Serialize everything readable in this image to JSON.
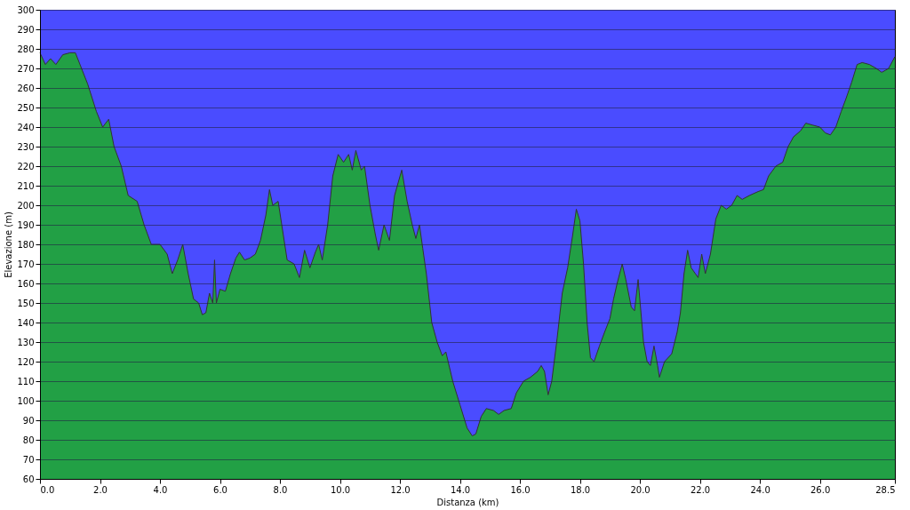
{
  "chart_data": {
    "type": "area",
    "xlabel": "Distanza  (km)",
    "ylabel": "Elevazione (m)",
    "xlim": [
      0,
      28.5
    ],
    "ylim": [
      60,
      300
    ],
    "xticks": [
      {
        "value": 0,
        "label": "0.0"
      },
      {
        "value": 2,
        "label": "2.0"
      },
      {
        "value": 4,
        "label": "4.0"
      },
      {
        "value": 6,
        "label": "6.0"
      },
      {
        "value": 8,
        "label": "8.0"
      },
      {
        "value": 10,
        "label": "10.0"
      },
      {
        "value": 12,
        "label": "12.0"
      },
      {
        "value": 14,
        "label": "14.0"
      },
      {
        "value": 16,
        "label": "16.0"
      },
      {
        "value": 18,
        "label": "18.0"
      },
      {
        "value": 20,
        "label": "20.0"
      },
      {
        "value": 22,
        "label": "22.0"
      },
      {
        "value": 24,
        "label": "24.0"
      },
      {
        "value": 26,
        "label": "26.0"
      },
      {
        "value": 28.5,
        "label": "28.5"
      }
    ],
    "yticks": [
      60,
      70,
      80,
      90,
      100,
      110,
      120,
      130,
      140,
      150,
      160,
      170,
      180,
      190,
      200,
      210,
      220,
      230,
      240,
      250,
      260,
      270,
      280,
      290,
      300
    ],
    "grid": "y",
    "bands": [
      {
        "axis": "y",
        "from": 60,
        "to": 300,
        "color": "#4a4cff"
      }
    ],
    "series": [
      {
        "color": "#22a045",
        "x": [
          0,
          0.18,
          0.35,
          0.53,
          0.76,
          1.0,
          1.18,
          1.59,
          1.88,
          2.09,
          2.29,
          2.47,
          2.71,
          2.94,
          3.24,
          3.47,
          3.71,
          4.0,
          4.24,
          4.41,
          4.59,
          4.76,
          4.94,
          5.12,
          5.29,
          5.41,
          5.53,
          5.65,
          5.76,
          5.82,
          5.88,
          6.0,
          6.18,
          6.35,
          6.53,
          6.65,
          6.82,
          7.0,
          7.18,
          7.35,
          7.53,
          7.65,
          7.76,
          7.94,
          8.06,
          8.24,
          8.47,
          8.65,
          8.82,
          9.0,
          9.18,
          9.29,
          9.41,
          9.59,
          9.76,
          9.94,
          10.12,
          10.29,
          10.41,
          10.53,
          10.71,
          10.82,
          11.0,
          11.18,
          11.29,
          11.47,
          11.65,
          11.82,
          12.06,
          12.24,
          12.41,
          12.53,
          12.65,
          12.76,
          12.88,
          13.06,
          13.24,
          13.41,
          13.53,
          13.76,
          14.0,
          14.24,
          14.41,
          14.53,
          14.71,
          14.88,
          15.12,
          15.29,
          15.47,
          15.71,
          15.88,
          16.12,
          16.35,
          16.59,
          16.71,
          16.82,
          16.94,
          17.06,
          17.24,
          17.41,
          17.59,
          17.76,
          17.88,
          18.0,
          18.12,
          18.24,
          18.35,
          18.47,
          18.65,
          18.82,
          19.0,
          19.12,
          19.24,
          19.41,
          19.53,
          19.71,
          19.82,
          19.94,
          20.12,
          20.24,
          20.35,
          20.47,
          20.59,
          20.65,
          20.82,
          21.06,
          21.24,
          21.35,
          21.47,
          21.59,
          21.71,
          21.94,
          22.06,
          22.18,
          22.35,
          22.53,
          22.71,
          22.88,
          23.06,
          23.24,
          23.41,
          23.65,
          23.94,
          24.12,
          24.29,
          24.53,
          24.76,
          24.94,
          25.12,
          25.35,
          25.53,
          25.76,
          26.0,
          26.18,
          26.35,
          26.53,
          26.71,
          26.88,
          27.06,
          27.24,
          27.41,
          27.65,
          27.88,
          28.06,
          28.18,
          28.29,
          28.5
        ],
        "values": [
          278,
          272,
          275,
          272,
          277,
          278,
          278,
          262,
          248,
          240,
          244,
          230,
          220,
          205,
          202,
          190,
          180,
          180,
          175,
          165,
          172,
          180,
          165,
          152,
          150,
          144,
          145,
          155,
          150,
          172,
          150,
          157,
          156,
          165,
          173,
          176,
          172,
          173,
          175,
          182,
          195,
          208,
          200,
          202,
          190,
          172,
          170,
          163,
          177,
          168,
          176,
          180,
          172,
          190,
          215,
          226,
          222,
          226,
          218,
          228,
          218,
          220,
          200,
          185,
          177,
          190,
          182,
          205,
          218,
          202,
          190,
          183,
          190,
          178,
          165,
          140,
          130,
          123,
          125,
          110,
          98,
          86,
          82,
          83,
          92,
          96,
          95,
          93,
          95,
          96,
          104,
          110,
          112,
          115,
          118,
          115,
          103,
          110,
          132,
          155,
          168,
          185,
          198,
          192,
          170,
          140,
          122,
          120,
          128,
          135,
          142,
          152,
          160,
          170,
          162,
          148,
          146,
          162,
          130,
          120,
          118,
          128,
          118,
          112,
          120,
          124,
          135,
          145,
          165,
          177,
          168,
          163,
          175,
          165,
          175,
          193,
          200,
          198,
          200,
          205,
          203,
          205,
          207,
          208,
          215,
          220,
          222,
          230,
          235,
          238,
          242,
          241,
          240,
          237,
          236,
          240,
          248,
          255,
          263,
          272,
          273,
          272,
          270,
          268,
          269,
          270,
          276
        ]
      }
    ]
  }
}
